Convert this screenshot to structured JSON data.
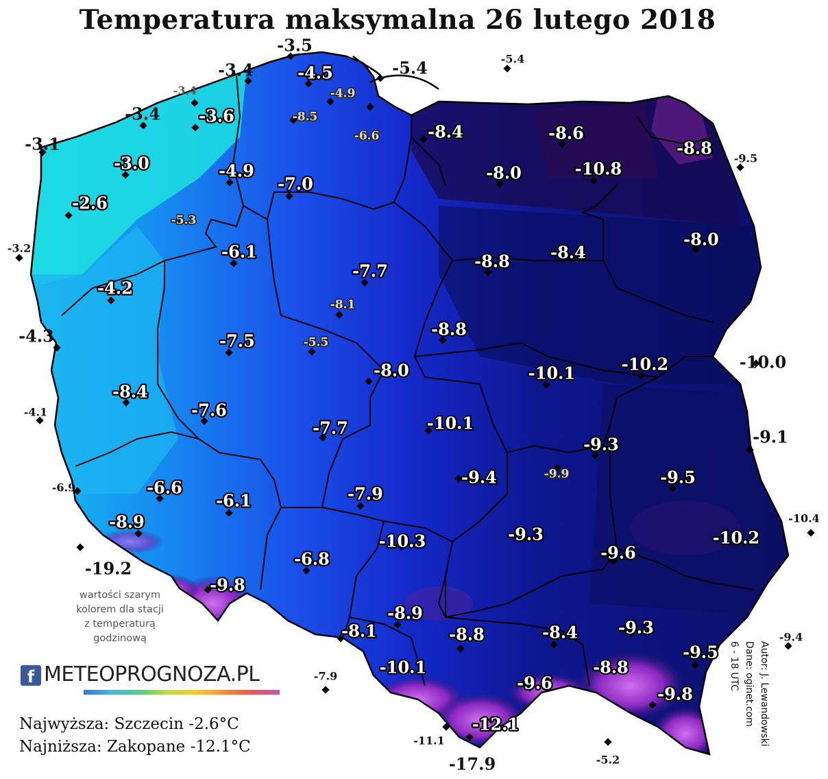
{
  "title": "Temperatura maksymalna 26 lutego 2018",
  "colors": {
    "coast_cyan": "#1de8d8",
    "west_blue": "#19a8f0",
    "central_blue": "#1a2fe0",
    "east_navy": "#0c0f6e",
    "northeast_dark": "#1a0a4a",
    "mountain_purple": "#9b30d0",
    "sea": "#ffffff"
  },
  "stations": [
    {
      "label": "-3.5",
      "style": "plain"
    },
    {
      "label": "-3.4",
      "style": "plain"
    },
    {
      "label": "-4.5",
      "style": "halo"
    },
    {
      "label": "-5.4",
      "style": "plain"
    },
    {
      "label": "-5.4",
      "style": "plain-small"
    },
    {
      "label": "-3.4",
      "style": "grey-small"
    },
    {
      "label": "-4.9",
      "style": "grey-halo"
    },
    {
      "label": "-3.4",
      "style": "plain"
    },
    {
      "label": "-3.6",
      "style": "halo"
    },
    {
      "label": "-8.5",
      "style": "grey-halo"
    },
    {
      "label": "-6.6",
      "style": "grey-halo"
    },
    {
      "label": "-8.4",
      "style": "halo"
    },
    {
      "label": "-8.6",
      "style": "halo"
    },
    {
      "label": "-3.1",
      "style": "plain"
    },
    {
      "label": "-8.8",
      "style": "halo"
    },
    {
      "label": "-9.5",
      "style": "plain-small"
    },
    {
      "label": "-3.0",
      "style": "halo"
    },
    {
      "label": "-4.9",
      "style": "halo"
    },
    {
      "label": "-8.0",
      "style": "halo"
    },
    {
      "label": "-10.8",
      "style": "halo"
    },
    {
      "label": "-7.0",
      "style": "halo"
    },
    {
      "label": "-2.6",
      "style": "halo"
    },
    {
      "label": "-5.3",
      "style": "grey-halo"
    },
    {
      "label": "-3.2",
      "style": "plain-small"
    },
    {
      "label": "-6.1",
      "style": "halo"
    },
    {
      "label": "-8.0",
      "style": "halo"
    },
    {
      "label": "-8.8",
      "style": "halo"
    },
    {
      "label": "-8.4",
      "style": "halo"
    },
    {
      "label": "-7.7",
      "style": "halo"
    },
    {
      "label": "-4.2",
      "style": "halo"
    },
    {
      "label": "-8.1",
      "style": "grey-halo"
    },
    {
      "label": "-8.8",
      "style": "halo"
    },
    {
      "label": "-4.3",
      "style": "plain"
    },
    {
      "label": "-7.5",
      "style": "halo"
    },
    {
      "label": "-5.5",
      "style": "grey-halo"
    },
    {
      "label": "-10.2",
      "style": "halo"
    },
    {
      "label": "-10.0",
      "style": "plain"
    },
    {
      "label": "-8.0",
      "style": "halo"
    },
    {
      "label": "-10.1",
      "style": "halo"
    },
    {
      "label": "-8.4",
      "style": "halo"
    },
    {
      "label": "-4.1",
      "style": "plain-small"
    },
    {
      "label": "-7.6",
      "style": "halo"
    },
    {
      "label": "-10.1",
      "style": "halo"
    },
    {
      "label": "-7.7",
      "style": "halo"
    },
    {
      "label": "-9.1",
      "style": "plain"
    },
    {
      "label": "-9.3",
      "style": "halo"
    },
    {
      "label": "-6.9",
      "style": "plain-small"
    },
    {
      "label": "-6.6",
      "style": "halo"
    },
    {
      "label": "-9.9",
      "style": "grey-halo"
    },
    {
      "label": "-9.4",
      "style": "halo"
    },
    {
      "label": "-9.5",
      "style": "halo"
    },
    {
      "label": "-7.9",
      "style": "halo"
    },
    {
      "label": "-6.1",
      "style": "halo"
    },
    {
      "label": "-8.9",
      "style": "halo"
    },
    {
      "label": "-10.4",
      "style": "plain-small"
    },
    {
      "label": "-10.3",
      "style": "halo"
    },
    {
      "label": "-9.3",
      "style": "halo"
    },
    {
      "label": "-10.2",
      "style": "halo"
    },
    {
      "label": "-19.2",
      "style": "plain"
    },
    {
      "label": "-6.8",
      "style": "halo"
    },
    {
      "label": "-9.6",
      "style": "halo"
    },
    {
      "label": "-9.8",
      "style": "halo"
    },
    {
      "label": "-8.9",
      "style": "halo"
    },
    {
      "label": "-9.3",
      "style": "halo"
    },
    {
      "label": "-8.1",
      "style": "halo"
    },
    {
      "label": "-8.8",
      "style": "halo"
    },
    {
      "label": "-8.4",
      "style": "halo"
    },
    {
      "label": "-9.4",
      "style": "plain-small"
    },
    {
      "label": "-9.5",
      "style": "halo"
    },
    {
      "label": "-10.1",
      "style": "halo"
    },
    {
      "label": "-8.8",
      "style": "halo"
    },
    {
      "label": "-7.9",
      "style": "plain-small"
    },
    {
      "label": "-9.6",
      "style": "halo"
    },
    {
      "label": "-9.8",
      "style": "halo"
    },
    {
      "label": "-12.1",
      "style": "halo"
    },
    {
      "label": "-11.1",
      "style": "plain-small"
    },
    {
      "label": "-17.9",
      "style": "plain"
    },
    {
      "label": "-5.2",
      "style": "plain-small"
    }
  ],
  "note_lines": [
    "wartości szarym",
    "kolorem dla stacji",
    "z temperaturą",
    "godzinową"
  ],
  "logo": {
    "fb": "f",
    "text": "METEOPROGNOZA.PL",
    "icon": "facebook-icon"
  },
  "records": {
    "highest": "Najwyższa: Szczecin -2.6°C",
    "lowest": "Najniższa: Zakopane -12.1°C"
  },
  "credits": {
    "author": "Autor: J. Lewandowski",
    "data": "Dane: oginet.com",
    "hours": "6 - 18 UTC"
  }
}
